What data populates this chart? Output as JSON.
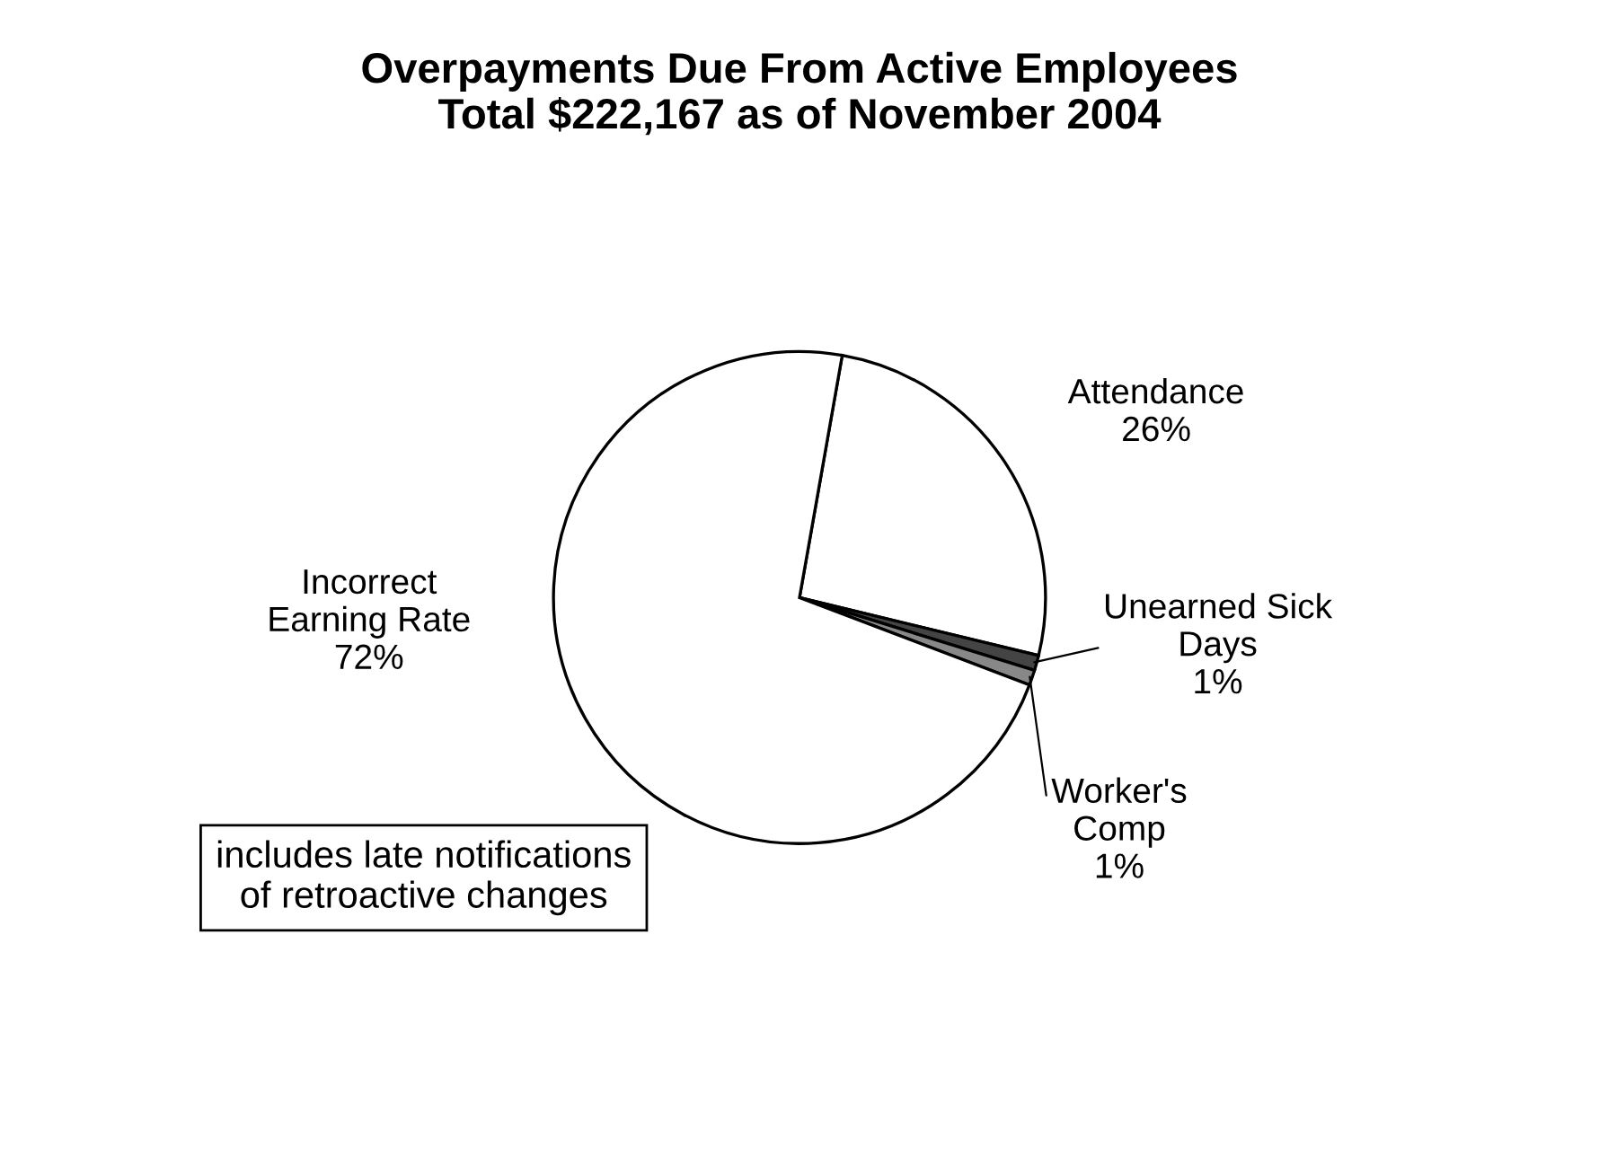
{
  "chart_data": {
    "type": "pie",
    "title": "Overpayments Due From Active Employees\nTotal $222,167 as of November 2004",
    "categories": [
      "Attendance",
      "Unearned Sick\nDays",
      "Worker's\nComp",
      "Incorrect\nEarning Rate"
    ],
    "values": [
      26,
      1,
      1,
      72
    ],
    "value_labels": [
      "26%",
      "1%",
      "1%",
      "72%"
    ],
    "colors": [
      "#ffffff",
      "#444444",
      "#888888",
      "#ffffff"
    ],
    "annotations": [
      "includes late notifications\nof retroactive changes"
    ]
  }
}
